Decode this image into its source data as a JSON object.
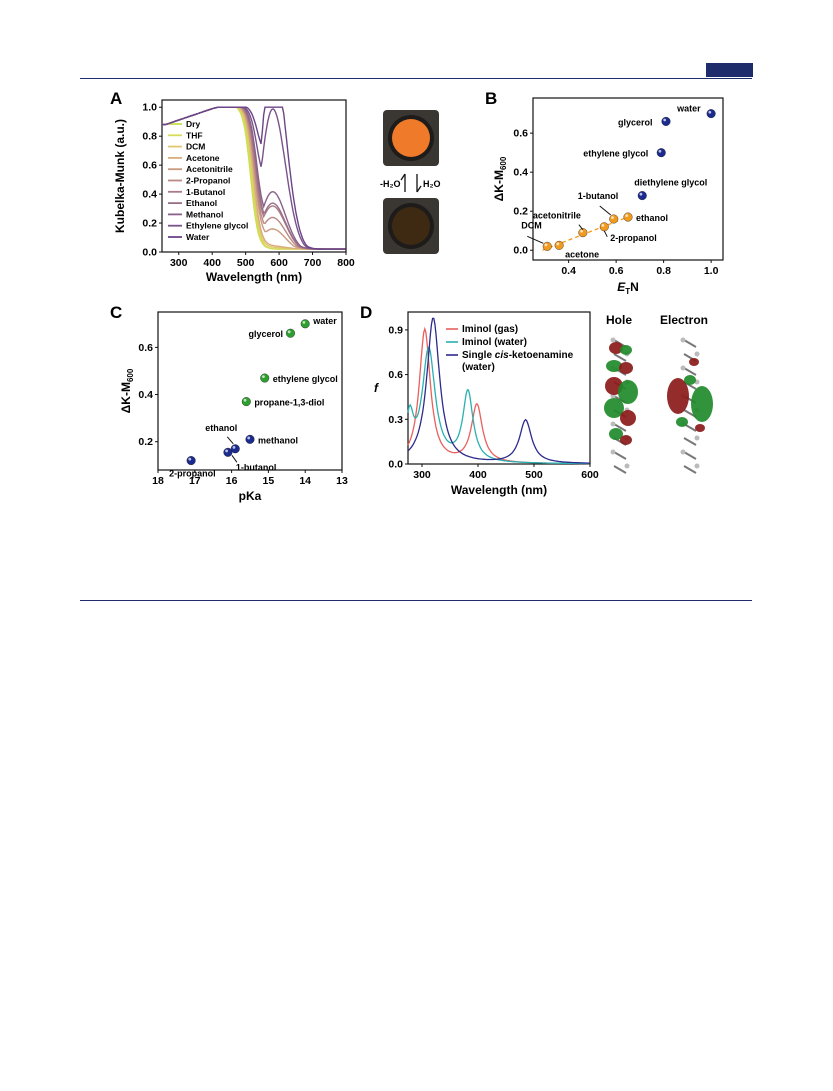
{
  "page": {
    "accent": "#1f2c6b"
  },
  "panel_a": {
    "label": "A",
    "arrow_labels": {
      "dehydrate": "-H₂O",
      "hydrate": "H₂O"
    },
    "chart_data": {
      "type": "line",
      "xlabel": "Wavelength (nm)",
      "ylabel": "Kubelka-Munk (a.u.)",
      "xlim": [
        250,
        800
      ],
      "ylim": [
        0,
        1.05
      ],
      "xticks": [
        300,
        400,
        500,
        600,
        700,
        800
      ],
      "yticks": [
        0.0,
        0.2,
        0.4,
        0.6,
        0.8,
        1.0
      ],
      "legend_placement": "middle-left",
      "series": [
        {
          "name": "Dry",
          "color": "#c8e04a",
          "shift": 0,
          "shoulder": 0.0
        },
        {
          "name": "THF",
          "color": "#d6dc58",
          "shift": 3,
          "shoulder": 0.0
        },
        {
          "name": "DCM",
          "color": "#e0c870",
          "shift": 6,
          "shoulder": 0.01
        },
        {
          "name": "Acetone",
          "color": "#d8ad7c",
          "shift": 9,
          "shoulder": 0.02
        },
        {
          "name": "Acetonitrile",
          "color": "#c99a80",
          "shift": 12,
          "shoulder": 0.08
        },
        {
          "name": "2-Propanol",
          "color": "#ba8a84",
          "shift": 14,
          "shoulder": 0.12
        },
        {
          "name": "1-Butanol",
          "color": "#a97c86",
          "shift": 16,
          "shoulder": 0.16
        },
        {
          "name": "Ethanol",
          "color": "#9a6f88",
          "shift": 18,
          "shoulder": 0.17
        },
        {
          "name": "Methanol",
          "color": "#8a618a",
          "shift": 20,
          "shoulder": 0.21
        },
        {
          "name": "Ethylene glycol",
          "color": "#7a528a",
          "shift": 24,
          "shoulder": 0.5
        },
        {
          "name": "Water",
          "color": "#6a4488",
          "shift": 30,
          "shoulder": 0.7
        }
      ]
    }
  },
  "panel_b": {
    "label": "B",
    "chart_data": {
      "type": "scatter",
      "xlabel_main": "E",
      "xlabel_sub": "T",
      "xlabel_tail": "N",
      "ylabel_main": "ΔK-M",
      "ylabel_sub": "600",
      "xlim": [
        0.25,
        1.05
      ],
      "ylim": [
        -0.05,
        0.78
      ],
      "xticks": [
        0.4,
        0.6,
        0.8,
        1.0
      ],
      "yticks": [
        0.0,
        0.2,
        0.4,
        0.6
      ],
      "points": [
        {
          "label": "DCM",
          "x": 0.31,
          "y": 0.02,
          "color": "#f29a1e"
        },
        {
          "label": "acetone",
          "x": 0.36,
          "y": 0.025,
          "color": "#f29a1e"
        },
        {
          "label": "acetonitrile",
          "x": 0.46,
          "y": 0.09,
          "color": "#f29a1e"
        },
        {
          "label": "2-propanol",
          "x": 0.55,
          "y": 0.12,
          "color": "#f29a1e"
        },
        {
          "label": "1-butanol",
          "x": 0.59,
          "y": 0.16,
          "color": "#f29a1e"
        },
        {
          "label": "ethanol",
          "x": 0.65,
          "y": 0.17,
          "color": "#f29a1e"
        },
        {
          "label": "diethylene glycol",
          "x": 0.71,
          "y": 0.28,
          "color": "#1b2a8f"
        },
        {
          "label": "ethylene glycol",
          "x": 0.79,
          "y": 0.5,
          "color": "#1b2a8f"
        },
        {
          "label": "glycerol",
          "x": 0.81,
          "y": 0.66,
          "color": "#1b2a8f"
        },
        {
          "label": "water",
          "x": 1.0,
          "y": 0.7,
          "color": "#1b2a8f"
        }
      ]
    }
  },
  "panel_c": {
    "label": "C",
    "chart_data": {
      "type": "scatter",
      "xlabel": "pKa",
      "ylabel_main": "ΔK-M",
      "ylabel_sub": "600",
      "xlim": [
        18,
        13
      ],
      "ylim": [
        0.08,
        0.75
      ],
      "xticks": [
        18,
        17,
        16,
        15,
        14,
        13
      ],
      "yticks": [
        0.2,
        0.4,
        0.6
      ],
      "points": [
        {
          "label": "2-propanol",
          "x": 17.1,
          "y": 0.12,
          "color": "#1b2a8f"
        },
        {
          "label": "1-butanol",
          "x": 16.1,
          "y": 0.155,
          "color": "#1b2a8f"
        },
        {
          "label": "ethanol",
          "x": 15.9,
          "y": 0.17,
          "color": "#1b2a8f"
        },
        {
          "label": "methanol",
          "x": 15.5,
          "y": 0.21,
          "color": "#1b2a8f"
        },
        {
          "label": "propane-1,3-diol",
          "x": 15.6,
          "y": 0.37,
          "color": "#2e9e2e"
        },
        {
          "label": "ethylene glycol",
          "x": 15.1,
          "y": 0.47,
          "color": "#2e9e2e"
        },
        {
          "label": "glycerol",
          "x": 14.4,
          "y": 0.66,
          "color": "#2e9e2e"
        },
        {
          "label": "water",
          "x": 14.0,
          "y": 0.7,
          "color": "#2e9e2e"
        }
      ]
    }
  },
  "panel_d": {
    "label": "D",
    "orbital_labels": {
      "hole": "Hole",
      "electron": "Electron"
    },
    "chart_data": {
      "type": "line",
      "xlabel": "Wavelength (nm)",
      "ylabel": "f",
      "xlim": [
        275,
        600
      ],
      "ylim": [
        0,
        1.02
      ],
      "xticks": [
        300,
        400,
        500,
        600
      ],
      "yticks": [
        0.0,
        0.3,
        0.6,
        0.9
      ],
      "legend_placement": "top-right",
      "series": [
        {
          "name": "Iminol (gas)",
          "color": "#e8605c",
          "peaks": [
            [
              305,
              0.9,
              12
            ],
            [
              398,
              0.39,
              12
            ]
          ]
        },
        {
          "name": "Iminol (water)",
          "color": "#2ab0b0",
          "peaks": [
            [
              312,
              0.76,
              14
            ],
            [
              382,
              0.47,
              11
            ],
            [
              278,
              0.28,
              8
            ]
          ]
        },
        {
          "name": "Single cis-ketoenamine (water)",
          "color": "#2c2a8c",
          "legend_parts": [
            "Single ",
            "cis",
            "-ketoenamine",
            "(water)"
          ],
          "peaks": [
            [
              320,
              0.98,
              14
            ],
            [
              485,
              0.29,
              13
            ]
          ]
        }
      ]
    }
  }
}
